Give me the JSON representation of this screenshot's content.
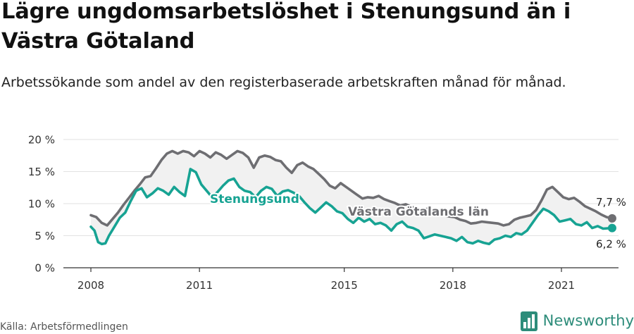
{
  "title": "Lägre ungdomsarbetslöshet i Stenungsund än i Västra Götaland",
  "subtitle": "Arbetssökande som andel av den registerbaserade arbetskraften månad för månad.",
  "source": "Källa: Arbetsförmedlingen",
  "brand": "Newsworthy",
  "colors": {
    "region": "#6e6e72",
    "municipality": "#17a393",
    "band": "#f1f1f1",
    "axis": "#333333",
    "grid": "#e2e2e2",
    "brand": "#2d8c7a"
  },
  "chart_data": {
    "type": "line",
    "title": "Lägre ungdomsarbetslöshet i Stenungsund än i Västra Götaland",
    "ylabel": "",
    "ylim": [
      0,
      20
    ],
    "yticks": [
      "0 %",
      "5 %",
      "10 %",
      "15 %",
      "20 %"
    ],
    "xlim": [
      2008.0,
      2023.1
    ],
    "xticks": [
      "2008",
      "2011",
      "2015",
      "2018",
      "2021"
    ],
    "grid": true,
    "series": [
      {
        "name": "Västra Götalands län",
        "color": "#6e6e72",
        "end_label": "7,7 %",
        "values": [
          [
            2008.0,
            8.2
          ],
          [
            2008.15,
            7.9
          ],
          [
            2008.3,
            7.0
          ],
          [
            2008.45,
            6.6
          ],
          [
            2008.6,
            7.6
          ],
          [
            2008.75,
            8.6
          ],
          [
            2008.9,
            9.8
          ],
          [
            2009.05,
            10.9
          ],
          [
            2009.2,
            12.0
          ],
          [
            2009.35,
            13.0
          ],
          [
            2009.5,
            14.1
          ],
          [
            2009.65,
            14.3
          ],
          [
            2009.8,
            15.5
          ],
          [
            2009.95,
            16.8
          ],
          [
            2010.1,
            17.8
          ],
          [
            2010.25,
            18.2
          ],
          [
            2010.4,
            17.8
          ],
          [
            2010.55,
            18.2
          ],
          [
            2010.7,
            18.0
          ],
          [
            2010.85,
            17.4
          ],
          [
            2011.0,
            18.2
          ],
          [
            2011.15,
            17.8
          ],
          [
            2011.3,
            17.2
          ],
          [
            2011.45,
            18.0
          ],
          [
            2011.6,
            17.6
          ],
          [
            2011.75,
            17.0
          ],
          [
            2011.9,
            17.6
          ],
          [
            2012.05,
            18.2
          ],
          [
            2012.2,
            17.9
          ],
          [
            2012.35,
            17.2
          ],
          [
            2012.5,
            15.6
          ],
          [
            2012.65,
            17.2
          ],
          [
            2012.8,
            17.5
          ],
          [
            2012.95,
            17.3
          ],
          [
            2013.1,
            16.8
          ],
          [
            2013.25,
            16.6
          ],
          [
            2013.4,
            15.6
          ],
          [
            2013.55,
            14.8
          ],
          [
            2013.7,
            16.0
          ],
          [
            2013.85,
            16.4
          ],
          [
            2014.0,
            15.8
          ],
          [
            2014.15,
            15.4
          ],
          [
            2014.3,
            14.6
          ],
          [
            2014.45,
            13.8
          ],
          [
            2014.6,
            12.8
          ],
          [
            2014.75,
            12.4
          ],
          [
            2014.9,
            13.2
          ],
          [
            2015.05,
            12.6
          ],
          [
            2015.2,
            12.0
          ],
          [
            2015.35,
            11.4
          ],
          [
            2015.5,
            10.8
          ],
          [
            2015.65,
            11.0
          ],
          [
            2015.8,
            10.9
          ],
          [
            2015.95,
            11.2
          ],
          [
            2016.1,
            10.7
          ],
          [
            2016.25,
            10.4
          ],
          [
            2016.4,
            10.1
          ],
          [
            2016.55,
            9.7
          ],
          [
            2016.7,
            9.9
          ],
          [
            2016.85,
            9.5
          ],
          [
            2017.0,
            9.3
          ],
          [
            2017.15,
            9.0
          ],
          [
            2017.3,
            9.2
          ],
          [
            2017.45,
            8.6
          ],
          [
            2017.6,
            8.5
          ],
          [
            2017.75,
            8.2
          ],
          [
            2017.9,
            8.0
          ],
          [
            2018.05,
            7.9
          ],
          [
            2018.2,
            7.5
          ],
          [
            2018.35,
            7.3
          ],
          [
            2018.5,
            6.9
          ],
          [
            2018.65,
            7.0
          ],
          [
            2018.8,
            7.2
          ],
          [
            2018.95,
            7.1
          ],
          [
            2019.1,
            7.0
          ],
          [
            2019.25,
            6.9
          ],
          [
            2019.4,
            6.6
          ],
          [
            2019.55,
            6.8
          ],
          [
            2019.7,
            7.5
          ],
          [
            2019.85,
            7.8
          ],
          [
            2020.0,
            8.0
          ],
          [
            2020.15,
            8.2
          ],
          [
            2020.3,
            9.0
          ],
          [
            2020.45,
            10.5
          ],
          [
            2020.6,
            12.2
          ],
          [
            2020.75,
            12.6
          ],
          [
            2020.9,
            11.8
          ],
          [
            2021.05,
            11.0
          ],
          [
            2021.2,
            10.7
          ],
          [
            2021.35,
            10.9
          ],
          [
            2021.5,
            10.3
          ],
          [
            2021.65,
            9.6
          ],
          [
            2021.8,
            9.2
          ],
          [
            2021.95,
            8.8
          ],
          [
            2022.1,
            8.3
          ],
          [
            2022.25,
            7.9
          ],
          [
            2022.4,
            7.7
          ]
        ]
      },
      {
        "name": "Stenungsund",
        "color": "#17a393",
        "end_label": "6,2 %",
        "values": [
          [
            2008.0,
            6.4
          ],
          [
            2008.1,
            5.8
          ],
          [
            2008.2,
            4.0
          ],
          [
            2008.3,
            3.7
          ],
          [
            2008.4,
            3.8
          ],
          [
            2008.5,
            5.0
          ],
          [
            2008.65,
            6.4
          ],
          [
            2008.8,
            7.8
          ],
          [
            2008.95,
            8.6
          ],
          [
            2009.1,
            10.4
          ],
          [
            2009.25,
            12.0
          ],
          [
            2009.4,
            12.4
          ],
          [
            2009.55,
            11.0
          ],
          [
            2009.7,
            11.6
          ],
          [
            2009.85,
            12.4
          ],
          [
            2010.0,
            12.0
          ],
          [
            2010.15,
            11.4
          ],
          [
            2010.3,
            12.6
          ],
          [
            2010.45,
            11.8
          ],
          [
            2010.6,
            11.2
          ],
          [
            2010.75,
            15.4
          ],
          [
            2010.9,
            14.9
          ],
          [
            2011.05,
            13.0
          ],
          [
            2011.2,
            12.0
          ],
          [
            2011.35,
            11.0
          ],
          [
            2011.5,
            11.8
          ],
          [
            2011.65,
            12.8
          ],
          [
            2011.8,
            13.6
          ],
          [
            2011.95,
            13.9
          ],
          [
            2012.1,
            12.6
          ],
          [
            2012.25,
            12.0
          ],
          [
            2012.4,
            11.8
          ],
          [
            2012.55,
            11.0
          ],
          [
            2012.7,
            12.0
          ],
          [
            2012.85,
            12.6
          ],
          [
            2013.0,
            12.3
          ],
          [
            2013.15,
            11.2
          ],
          [
            2013.3,
            11.9
          ],
          [
            2013.45,
            12.1
          ],
          [
            2013.6,
            11.7
          ],
          [
            2013.75,
            11.2
          ],
          [
            2013.9,
            10.2
          ],
          [
            2014.05,
            9.3
          ],
          [
            2014.2,
            8.6
          ],
          [
            2014.35,
            9.4
          ],
          [
            2014.5,
            10.2
          ],
          [
            2014.65,
            9.6
          ],
          [
            2014.8,
            8.8
          ],
          [
            2014.95,
            8.5
          ],
          [
            2015.1,
            7.6
          ],
          [
            2015.25,
            7.0
          ],
          [
            2015.4,
            7.8
          ],
          [
            2015.55,
            7.2
          ],
          [
            2015.7,
            7.6
          ],
          [
            2015.85,
            6.8
          ],
          [
            2016.0,
            7.0
          ],
          [
            2016.15,
            6.6
          ],
          [
            2016.3,
            5.8
          ],
          [
            2016.45,
            6.8
          ],
          [
            2016.6,
            7.2
          ],
          [
            2016.75,
            6.4
          ],
          [
            2016.9,
            6.2
          ],
          [
            2017.05,
            5.8
          ],
          [
            2017.2,
            4.6
          ],
          [
            2017.35,
            4.9
          ],
          [
            2017.5,
            5.2
          ],
          [
            2017.65,
            5.0
          ],
          [
            2017.8,
            4.8
          ],
          [
            2017.95,
            4.6
          ],
          [
            2018.1,
            4.2
          ],
          [
            2018.25,
            4.8
          ],
          [
            2018.4,
            4.0
          ],
          [
            2018.55,
            3.8
          ],
          [
            2018.7,
            4.2
          ],
          [
            2018.85,
            3.9
          ],
          [
            2019.0,
            3.7
          ],
          [
            2019.15,
            4.4
          ],
          [
            2019.3,
            4.6
          ],
          [
            2019.45,
            5.0
          ],
          [
            2019.6,
            4.8
          ],
          [
            2019.75,
            5.4
          ],
          [
            2019.9,
            5.2
          ],
          [
            2020.05,
            5.8
          ],
          [
            2020.2,
            7.0
          ],
          [
            2020.35,
            8.2
          ],
          [
            2020.5,
            9.2
          ],
          [
            2020.65,
            8.8
          ],
          [
            2020.8,
            8.2
          ],
          [
            2020.95,
            7.2
          ],
          [
            2021.1,
            7.4
          ],
          [
            2021.25,
            7.6
          ],
          [
            2021.4,
            6.8
          ],
          [
            2021.55,
            6.6
          ],
          [
            2021.7,
            7.1
          ],
          [
            2021.85,
            6.2
          ],
          [
            2022.0,
            6.5
          ],
          [
            2022.15,
            6.1
          ],
          [
            2022.4,
            6.2
          ]
        ]
      }
    ]
  }
}
